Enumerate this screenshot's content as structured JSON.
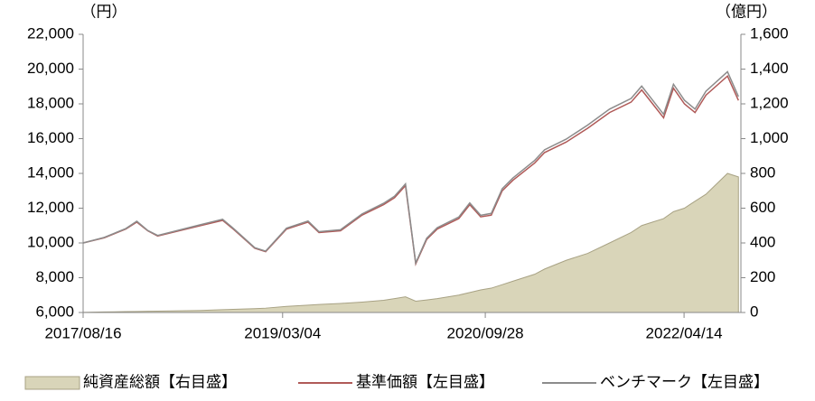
{
  "chart_data": {
    "type": "line",
    "y_label": "（円）",
    "y2_label": "（億円）",
    "x": [
      "2017/08/16",
      "2017/10/15",
      "2017/12/15",
      "2018/01/15",
      "2018/02/15",
      "2018/03/15",
      "2018/05/15",
      "2018/07/15",
      "2018/09/15",
      "2018/10/15",
      "2018/12/15",
      "2019/01/15",
      "2019/03/15",
      "2019/05/15",
      "2019/06/15",
      "2019/08/15",
      "2019/10/15",
      "2019/12/15",
      "2020/01/15",
      "2020/02/15",
      "2020/03/15",
      "2020/04/15",
      "2020/05/15",
      "2020/07/15",
      "2020/08/15",
      "2020/09/15",
      "2020/10/15",
      "2020/11/15",
      "2020/12/15",
      "2021/02/15",
      "2021/03/15",
      "2021/05/15",
      "2021/07/15",
      "2021/09/15",
      "2021/11/15",
      "2021/12/15",
      "2022/01/15",
      "2022/02/15",
      "2022/03/15",
      "2022/04/15",
      "2022/05/15",
      "2022/06/15",
      "2022/08/15",
      "2022/09/15"
    ],
    "xlim": [
      "2017/08/16",
      "2022/09/22"
    ],
    "xticks": [
      "2017/08/16",
      "2019/03/04",
      "2020/09/28",
      "2022/04/14"
    ],
    "ylim": [
      6000,
      22000
    ],
    "yticks": [
      {
        "value": 6000,
        "label": "6,000"
      },
      {
        "value": 8000,
        "label": "8,000"
      },
      {
        "value": 10000,
        "label": "10,000"
      },
      {
        "value": 12000,
        "label": "12,000"
      },
      {
        "value": 14000,
        "label": "14,000"
      },
      {
        "value": 16000,
        "label": "16,000"
      },
      {
        "value": 18000,
        "label": "18,000"
      },
      {
        "value": 20000,
        "label": "20,000"
      },
      {
        "value": 22000,
        "label": "22,000"
      }
    ],
    "y2lim": [
      0,
      1600
    ],
    "y2ticks": [
      0,
      200,
      400,
      600,
      800,
      {
        "value": 1000,
        "label": "1,000"
      },
      {
        "value": 1200,
        "label": "1,200"
      },
      {
        "value": 1400,
        "label": "1,400"
      },
      {
        "value": 1600,
        "label": "1,600"
      }
    ],
    "series": [
      {
        "name": "純資産総額【右目盛】",
        "kind": "area",
        "axis": "y2",
        "color": "#d9d5b9",
        "values": [
          1,
          3,
          5,
          6,
          7,
          8,
          10,
          12,
          16,
          18,
          22,
          25,
          35,
          42,
          46,
          52,
          60,
          70,
          80,
          90,
          65,
          72,
          80,
          100,
          115,
          130,
          140,
          160,
          180,
          220,
          250,
          300,
          340,
          400,
          460,
          500,
          520,
          540,
          580,
          600,
          640,
          680,
          800,
          780
        ]
      },
      {
        "name": "基準価額【左目盛】",
        "kind": "line",
        "color": "#b05a58",
        "values": [
          10000,
          10300,
          10800,
          11200,
          10700,
          10400,
          10700,
          11000,
          11300,
          10800,
          9700,
          9500,
          10800,
          11200,
          10600,
          10700,
          11600,
          12200,
          12600,
          13300,
          8800,
          10200,
          10800,
          11400,
          12200,
          11500,
          11600,
          13000,
          13600,
          14600,
          15200,
          15800,
          16600,
          17500,
          18100,
          18800,
          18000,
          17200,
          18900,
          18000,
          17500,
          18500,
          19600,
          18200
        ]
      },
      {
        "name": "ベンチマーク【左目盛】",
        "kind": "line",
        "color": "#8c8c8c",
        "values": [
          10000,
          10320,
          10830,
          11250,
          10720,
          10430,
          10740,
          11050,
          11360,
          10850,
          9730,
          9530,
          10850,
          11260,
          10650,
          10760,
          11670,
          12280,
          12690,
          13400,
          8850,
          10270,
          10880,
          11490,
          12300,
          11590,
          11700,
          13120,
          13730,
          14750,
          15360,
          15970,
          16780,
          17700,
          18310,
          19020,
          18210,
          17400,
          19130,
          18210,
          17700,
          18730,
          19850,
          18420
        ]
      }
    ]
  }
}
